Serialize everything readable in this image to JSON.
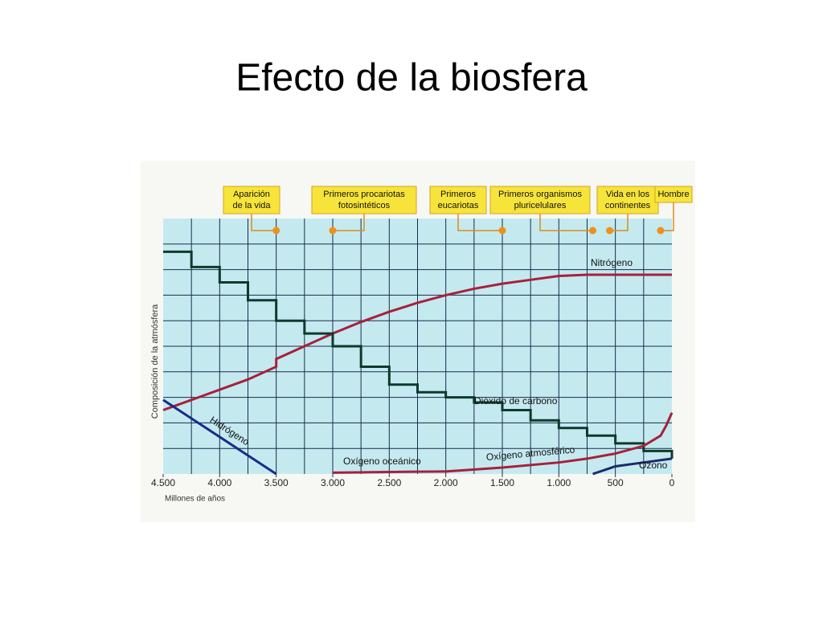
{
  "title": "Efecto de la biosfera",
  "chart_data": {
    "type": "line",
    "xlabel": "Millones de años",
    "ylabel": "Composición de la atmósfera",
    "xlim": [
      4500,
      0
    ],
    "ylim": [
      0,
      10
    ],
    "xticks": [
      {
        "value": 4500,
        "label": "4.500"
      },
      {
        "value": 4000,
        "label": "4.000"
      },
      {
        "value": 3500,
        "label": "3.500"
      },
      {
        "value": 3000,
        "label": "3.000"
      },
      {
        "value": 2500,
        "label": "2.500"
      },
      {
        "value": 2000,
        "label": "2.000"
      },
      {
        "value": 1500,
        "label": "1.500"
      },
      {
        "value": 1000,
        "label": "1.000"
      },
      500,
      0
    ],
    "grid": true,
    "series": [
      {
        "name": "Nitrógeno",
        "color": "#a8203a",
        "x": [
          4500,
          4250,
          4000,
          3750,
          3500,
          3500,
          3250,
          3000,
          2750,
          2500,
          2250,
          2000,
          1750,
          1500,
          1250,
          1000,
          750,
          500,
          250,
          0
        ],
        "values": [
          2.5,
          2.9,
          3.3,
          3.7,
          4.2,
          4.5,
          5.0,
          5.5,
          5.95,
          6.35,
          6.7,
          7.0,
          7.25,
          7.45,
          7.6,
          7.75,
          7.8,
          7.8,
          7.8,
          7.8
        ]
      },
      {
        "name": "Dióxido de carbono",
        "color": "#0e3a2c",
        "step": true,
        "x": [
          4500,
          4250,
          4000,
          3750,
          3500,
          3250,
          3000,
          2750,
          2500,
          2250,
          2000,
          1750,
          1500,
          1250,
          1000,
          750,
          500,
          250,
          0
        ],
        "values": [
          8.7,
          8.1,
          7.5,
          6.8,
          6.0,
          5.5,
          5.0,
          4.2,
          3.5,
          3.2,
          3.0,
          2.8,
          2.5,
          2.1,
          1.8,
          1.5,
          1.2,
          0.9,
          0.6
        ]
      },
      {
        "name": "Hidrógeno",
        "color": "#1a2a8a",
        "x": [
          4500,
          3500
        ],
        "values": [
          2.9,
          0
        ]
      },
      {
        "name": "Oxígeno oceánico",
        "color": "#a8203a",
        "x": [
          3000,
          2500,
          2000
        ],
        "values": [
          0.05,
          0.08,
          0.1
        ]
      },
      {
        "name": "Oxígeno atmosférico",
        "color": "#a8203a",
        "x": [
          2000,
          1500,
          1000,
          750,
          500,
          250,
          100,
          50,
          0
        ],
        "values": [
          0.1,
          0.25,
          0.45,
          0.6,
          0.8,
          1.1,
          1.5,
          1.9,
          2.4
        ]
      },
      {
        "name": "Ozono",
        "color": "#1a2a6a",
        "x": [
          700,
          500,
          250,
          0
        ],
        "values": [
          0,
          0.3,
          0.45,
          0.6
        ]
      }
    ],
    "events": [
      {
        "x": 3500,
        "label": [
          "Aparición",
          "de la vida"
        ]
      },
      {
        "x": 3000,
        "label": [
          "Primeros procariotas",
          "fotosintéticos"
        ]
      },
      {
        "x": 1500,
        "label": [
          "Primeros",
          "eucariotas"
        ]
      },
      {
        "x": 700,
        "label": [
          "Primeros organismos",
          "pluricelulares"
        ]
      },
      {
        "x": 550,
        "label": [
          "Vida en los",
          "continentes"
        ]
      },
      {
        "x": 100,
        "label": [
          "Hombre"
        ]
      }
    ]
  }
}
